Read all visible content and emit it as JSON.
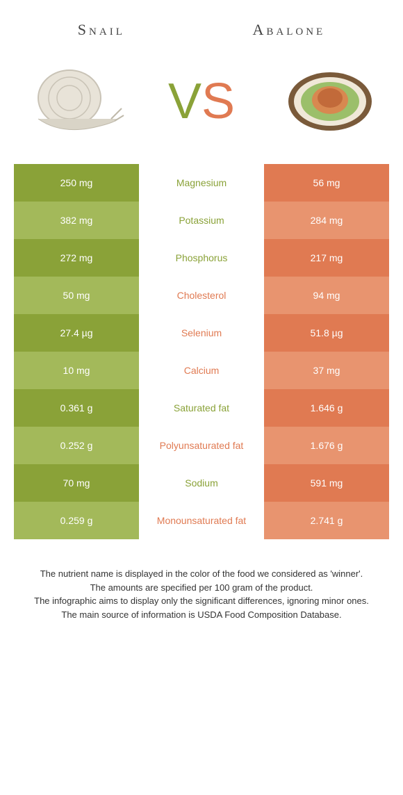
{
  "colors": {
    "green_dark": "#8aa238",
    "green_light": "#a3b95a",
    "orange_dark": "#e07a52",
    "orange_light": "#e8946f",
    "mid_green": "#8aa238",
    "mid_orange": "#e07a52"
  },
  "header": {
    "left": "Snail",
    "right": "Abalone"
  },
  "vs": {
    "v": "V",
    "s": "S"
  },
  "rows": [
    {
      "left": "250 mg",
      "mid": "Magnesium",
      "right": "56 mg",
      "winner": "left"
    },
    {
      "left": "382 mg",
      "mid": "Potassium",
      "right": "284 mg",
      "winner": "left"
    },
    {
      "left": "272 mg",
      "mid": "Phosphorus",
      "right": "217 mg",
      "winner": "left"
    },
    {
      "left": "50 mg",
      "mid": "Cholesterol",
      "right": "94 mg",
      "winner": "right"
    },
    {
      "left": "27.4 µg",
      "mid": "Selenium",
      "right": "51.8 µg",
      "winner": "right"
    },
    {
      "left": "10 mg",
      "mid": "Calcium",
      "right": "37 mg",
      "winner": "right"
    },
    {
      "left": "0.361 g",
      "mid": "Saturated fat",
      "right": "1.646 g",
      "winner": "left"
    },
    {
      "left": "0.252 g",
      "mid": "Polyunsaturated fat",
      "right": "1.676 g",
      "winner": "right"
    },
    {
      "left": "70 mg",
      "mid": "Sodium",
      "right": "591 mg",
      "winner": "left"
    },
    {
      "left": "0.259 g",
      "mid": "Monounsaturated fat",
      "right": "2.741 g",
      "winner": "right"
    }
  ],
  "footnotes": [
    "The nutrient name is displayed in the color of the food we considered as 'winner'.",
    "The amounts are specified per 100 gram of the product.",
    "The infographic aims to display only the significant differences, ignoring minor ones.",
    "The main source of information is USDA Food Composition Database."
  ]
}
